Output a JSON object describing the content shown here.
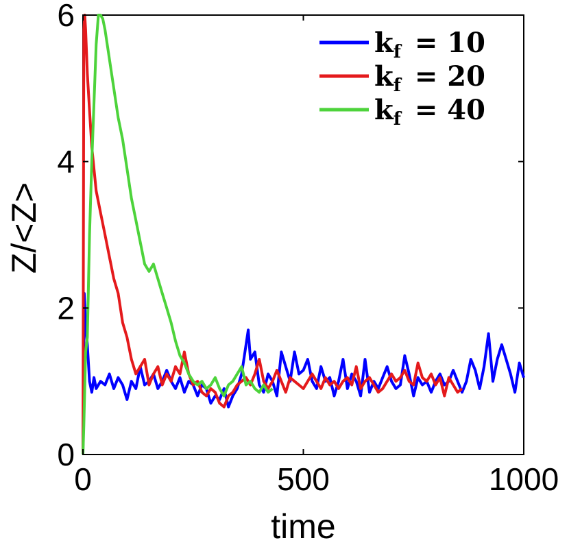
{
  "chart_data": {
    "type": "line",
    "xlabel": "time",
    "ylabel": "Z/<Z>",
    "xlim": [
      0,
      1000
    ],
    "ylim": [
      0,
      6
    ],
    "xticks": [
      "0",
      "500",
      "1000"
    ],
    "yticks": [
      "0",
      "2",
      "4",
      "6"
    ],
    "legend_position": "top-right",
    "grid": false,
    "series": [
      {
        "name": "kf = 10",
        "legend": {
          "var": "k",
          "sub": "f",
          "rel": "= 10"
        },
        "color": "#0000ff",
        "x": [
          0,
          3,
          6,
          10,
          15,
          20,
          25,
          30,
          40,
          50,
          60,
          70,
          80,
          90,
          100,
          110,
          120,
          130,
          140,
          150,
          160,
          170,
          180,
          190,
          200,
          210,
          220,
          230,
          240,
          250,
          260,
          270,
          280,
          290,
          300,
          310,
          320,
          330,
          340,
          350,
          360,
          370,
          375,
          380,
          390,
          400,
          410,
          420,
          430,
          440,
          450,
          460,
          470,
          480,
          490,
          500,
          510,
          520,
          530,
          540,
          550,
          560,
          570,
          580,
          590,
          600,
          610,
          620,
          630,
          640,
          650,
          660,
          670,
          680,
          690,
          700,
          710,
          720,
          730,
          740,
          750,
          760,
          770,
          780,
          790,
          800,
          810,
          820,
          830,
          840,
          850,
          860,
          870,
          880,
          890,
          900,
          910,
          920,
          930,
          940,
          950,
          960,
          970,
          980,
          990,
          1000
        ],
        "y": [
          0.0,
          2.2,
          1.8,
          1.5,
          1.0,
          0.85,
          1.05,
          0.9,
          1.0,
          0.95,
          1.1,
          0.9,
          1.05,
          0.95,
          0.75,
          1.0,
          0.9,
          1.2,
          0.95,
          1.0,
          1.1,
          0.9,
          1.0,
          1.15,
          1.0,
          0.9,
          1.05,
          0.85,
          1.0,
          0.95,
          0.8,
          0.95,
          0.9,
          0.7,
          0.8,
          0.75,
          0.9,
          0.65,
          0.8,
          0.9,
          1.1,
          1.5,
          1.7,
          1.3,
          1.4,
          0.95,
          0.85,
          1.1,
          1.0,
          0.8,
          1.4,
          1.2,
          1.0,
          1.4,
          1.1,
          1.15,
          1.3,
          1.0,
          0.9,
          1.2,
          1.0,
          1.05,
          0.8,
          1.0,
          1.3,
          0.9,
          1.1,
          1.0,
          0.8,
          1.3,
          0.85,
          1.0,
          0.9,
          1.05,
          1.2,
          1.0,
          0.9,
          0.95,
          1.35,
          1.1,
          0.8,
          1.05,
          0.95,
          1.0,
          0.85,
          1.0,
          1.1,
          0.95,
          1.0,
          1.15,
          1.0,
          0.85,
          1.0,
          1.3,
          1.15,
          0.9,
          1.2,
          1.65,
          1.0,
          1.3,
          1.5,
          1.3,
          1.1,
          0.85,
          1.25,
          1.05
        ]
      },
      {
        "name": "kf = 20",
        "legend": {
          "var": "k",
          "sub": "f",
          "rel": "= 20"
        },
        "color": "#e41a1c",
        "x": [
          0,
          2,
          4,
          6,
          10,
          15,
          20,
          25,
          30,
          40,
          50,
          60,
          70,
          80,
          90,
          100,
          110,
          120,
          130,
          140,
          150,
          160,
          170,
          180,
          190,
          200,
          210,
          220,
          230,
          240,
          250,
          260,
          270,
          280,
          290,
          300,
          310,
          320,
          330,
          340,
          350,
          360,
          370,
          380,
          390,
          400,
          410,
          420,
          430,
          440,
          450,
          460,
          470,
          480,
          490,
          500,
          510,
          520,
          530,
          540,
          550,
          560,
          570,
          580,
          590,
          600,
          610,
          620,
          630,
          640,
          650,
          660,
          670,
          680,
          690,
          700,
          710,
          720,
          730,
          740,
          750,
          760,
          770,
          780,
          790,
          800,
          810,
          820,
          830,
          840,
          850,
          860
        ],
        "y": [
          0.0,
          5.8,
          6.0,
          5.8,
          5.2,
          4.7,
          4.2,
          3.9,
          3.6,
          3.3,
          3.0,
          2.7,
          2.4,
          2.2,
          1.8,
          1.6,
          1.3,
          1.1,
          1.2,
          1.3,
          0.95,
          1.1,
          1.2,
          0.95,
          1.1,
          1.0,
          1.2,
          1.1,
          1.4,
          1.1,
          0.95,
          1.0,
          0.85,
          0.8,
          0.9,
          0.85,
          0.7,
          0.65,
          0.8,
          0.85,
          0.95,
          1.0,
          1.05,
          0.95,
          1.1,
          1.3,
          1.0,
          0.9,
          1.0,
          1.15,
          1.0,
          0.85,
          1.05,
          1.0,
          0.95,
          0.9,
          1.0,
          1.1,
          1.0,
          0.9,
          1.05,
          0.95,
          1.0,
          0.9,
          1.0,
          1.05,
          0.95,
          1.2,
          0.9,
          1.0,
          1.05,
          0.95,
          0.85,
          0.9,
          1.0,
          1.1,
          1.0,
          1.05,
          1.15,
          1.0,
          0.95,
          1.25,
          1.05,
          1.0,
          1.1,
          0.95,
          1.05,
          0.8,
          1.05,
          0.95,
          0.85,
          0.9
        ]
      },
      {
        "name": "kf = 40",
        "legend": {
          "var": "k",
          "sub": "f",
          "rel": "= 40"
        },
        "color": "#4dd33b",
        "x": [
          0,
          2,
          4,
          6,
          10,
          15,
          20,
          25,
          30,
          35,
          40,
          45,
          50,
          55,
          60,
          65,
          70,
          80,
          90,
          100,
          110,
          120,
          130,
          140,
          150,
          160,
          170,
          180,
          190,
          200,
          210,
          220,
          230,
          240,
          250,
          260,
          270,
          280,
          290,
          300,
          310,
          320,
          330,
          340,
          350,
          360,
          370,
          380,
          390,
          400,
          410,
          420,
          430
        ],
        "y": [
          0.0,
          0.4,
          0.9,
          1.4,
          1.6,
          3.0,
          4.0,
          4.8,
          5.6,
          6.0,
          6.0,
          5.95,
          5.8,
          5.6,
          5.4,
          5.2,
          5.0,
          4.6,
          4.3,
          3.9,
          3.5,
          3.2,
          2.9,
          2.6,
          2.5,
          2.6,
          2.4,
          2.2,
          2.0,
          1.8,
          1.55,
          1.35,
          1.25,
          1.1,
          1.0,
          0.95,
          1.0,
          0.9,
          0.95,
          1.05,
          0.9,
          0.8,
          0.95,
          1.0,
          1.1,
          1.2,
          0.95,
          1.0,
          0.9,
          0.85,
          0.95,
          0.85,
          0.9
        ]
      }
    ]
  }
}
